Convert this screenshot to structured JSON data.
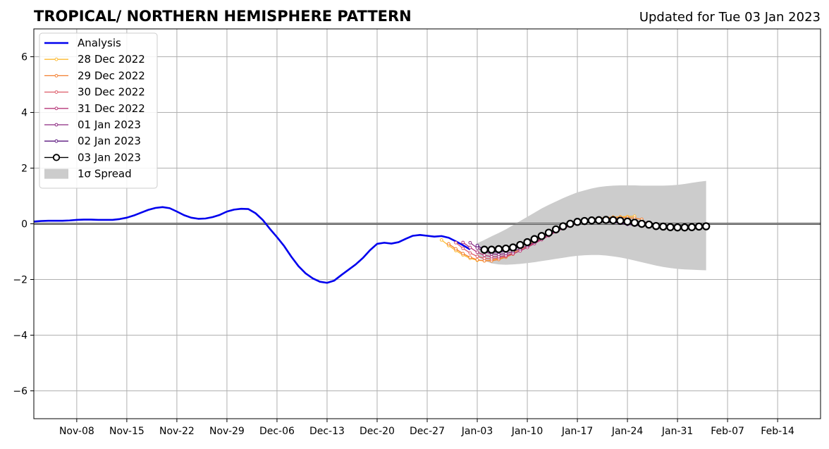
{
  "chart_data": {
    "type": "line",
    "title": "TROPICAL/ NORTHERN HEMISPHERE PATTERN",
    "subtitle": "Updated for Tue 03 Jan 2023",
    "xlabel": "",
    "ylabel": "",
    "ylim": [
      -7,
      7
    ],
    "xlim": [
      "2022-11-02",
      "2023-02-20"
    ],
    "yticks": [
      -6,
      -4,
      -2,
      0,
      2,
      4,
      6
    ],
    "ytick_labels": [
      "−6",
      "−4",
      "−2",
      "0",
      "2",
      "4",
      "6"
    ],
    "xticks": [
      "2022-11-08",
      "2022-11-15",
      "2022-11-22",
      "2022-11-29",
      "2022-12-06",
      "2022-12-13",
      "2022-12-20",
      "2022-12-27",
      "2023-01-03",
      "2023-01-10",
      "2023-01-17",
      "2023-01-24",
      "2023-01-31",
      "2023-02-07",
      "2023-02-14"
    ],
    "xtick_labels": [
      "Nov-08",
      "Nov-15",
      "Nov-22",
      "Nov-29",
      "Dec-06",
      "Dec-13",
      "Dec-20",
      "Dec-27",
      "Jan-03",
      "Jan-10",
      "Jan-17",
      "Jan-24",
      "Jan-31",
      "Feb-07",
      "Feb-14"
    ],
    "grid": true,
    "zero_line": true,
    "legend_position": "top-left",
    "legend": {
      "analysis": "Analysis",
      "spread": "1σ Spread"
    },
    "analysis": {
      "name": "Analysis",
      "color": "#0000ee",
      "start": "2022-11-02",
      "values": [
        0.08,
        0.1,
        0.11,
        0.11,
        0.11,
        0.12,
        0.14,
        0.15,
        0.15,
        0.14,
        0.14,
        0.14,
        0.17,
        0.22,
        0.3,
        0.4,
        0.5,
        0.57,
        0.6,
        0.56,
        0.44,
        0.31,
        0.22,
        0.18,
        0.19,
        0.24,
        0.32,
        0.44,
        0.51,
        0.54,
        0.53,
        0.38,
        0.14,
        -0.18,
        -0.48,
        -0.8,
        -1.18,
        -1.52,
        -1.78,
        -1.96,
        -2.08,
        -2.12,
        -2.04,
        -1.84,
        -1.65,
        -1.46,
        -1.23,
        -0.95,
        -0.72,
        -0.68,
        -0.71,
        -0.66,
        -0.54,
        -0.43,
        -0.4,
        -0.43,
        -0.46,
        -0.44,
        -0.5,
        -0.63,
        -0.77,
        -0.92
      ]
    },
    "forecasts": [
      {
        "name": "28 Dec 2022",
        "color": "#fcb930",
        "start": "2022-12-29",
        "values": [
          -0.58,
          -0.78,
          -0.96,
          -1.12,
          -1.24,
          -1.31,
          -1.33,
          -1.31,
          -1.26,
          -1.16,
          -1.04,
          -0.91,
          -0.78,
          -0.63,
          -0.48,
          -0.33,
          -0.2,
          -0.09,
          0.0,
          0.07,
          0.13,
          0.17,
          0.2,
          0.22,
          0.24,
          0.25,
          0.26,
          0.27
        ]
      },
      {
        "name": "29 Dec 2022",
        "color": "#f27e2f",
        "start": "2022-12-30",
        "values": [
          -0.72,
          -0.9,
          -1.07,
          -1.2,
          -1.29,
          -1.33,
          -1.33,
          -1.28,
          -1.2,
          -1.09,
          -0.96,
          -0.82,
          -0.67,
          -0.52,
          -0.37,
          -0.23,
          -0.11,
          -0.02,
          0.06,
          0.12,
          0.17,
          0.2,
          0.22,
          0.23,
          0.23,
          0.22,
          0.2,
          0.16
        ]
      },
      {
        "name": "30 Dec 2022",
        "color": "#dd5a67",
        "start": "2022-12-31",
        "values": [
          -0.68,
          -0.88,
          -1.05,
          -1.17,
          -1.24,
          -1.26,
          -1.23,
          -1.17,
          -1.08,
          -0.97,
          -0.84,
          -0.69,
          -0.54,
          -0.39,
          -0.25,
          -0.12,
          -0.02,
          0.06,
          0.11,
          0.14,
          0.16,
          0.16,
          0.15,
          0.13,
          0.11,
          0.09,
          0.07,
          0.05
        ]
      },
      {
        "name": "31 Dec 2022",
        "color": "#b73779",
        "start": "2023-01-01",
        "values": [
          -0.67,
          -0.85,
          -1.02,
          -1.13,
          -1.18,
          -1.18,
          -1.14,
          -1.07,
          -0.97,
          -0.85,
          -0.71,
          -0.57,
          -0.43,
          -0.29,
          -0.17,
          -0.07,
          0.01,
          0.06,
          0.1,
          0.11,
          0.11,
          0.1,
          0.08,
          0.05,
          0.03,
          0.01,
          0.0,
          -0.01
        ]
      },
      {
        "name": "01 Jan 2023",
        "color": "#8c2981",
        "start": "2023-01-02",
        "values": [
          -0.68,
          -0.87,
          -1.0,
          -1.08,
          -1.1,
          -1.07,
          -1.0,
          -0.9,
          -0.79,
          -0.66,
          -0.52,
          -0.38,
          -0.25,
          -0.14,
          -0.04,
          0.03,
          0.07,
          0.09,
          0.09,
          0.07,
          0.05,
          0.02,
          -0.01,
          -0.03,
          -0.05,
          -0.06,
          -0.07,
          -0.07
        ]
      },
      {
        "name": "02 Jan 2023",
        "color": "#5a167e",
        "start": "2023-01-03",
        "values": [
          -0.78,
          -0.94,
          -1.01,
          -1.02,
          -0.98,
          -0.91,
          -0.81,
          -0.69,
          -0.56,
          -0.43,
          -0.3,
          -0.18,
          -0.07,
          0.01,
          0.07,
          0.1,
          0.11,
          0.1,
          0.08,
          0.05,
          0.02,
          -0.02,
          -0.05,
          -0.07,
          -0.08,
          -0.09,
          -0.09,
          -0.08
        ]
      },
      {
        "name": "03 Jan 2023",
        "color": "#000000",
        "marker": "open-circle",
        "start": "2023-01-04",
        "values": [
          -0.93,
          -0.93,
          -0.91,
          -0.89,
          -0.85,
          -0.76,
          -0.66,
          -0.55,
          -0.44,
          -0.32,
          -0.2,
          -0.09,
          0.0,
          0.07,
          0.1,
          0.12,
          0.13,
          0.14,
          0.13,
          0.11,
          0.08,
          0.04,
          0.0,
          -0.03,
          -0.08,
          -0.1,
          -0.12,
          -0.13,
          -0.13,
          -0.12,
          -0.1,
          -0.09
        ]
      }
    ],
    "spread": {
      "name": "1σ Spread",
      "color": "#cccccc",
      "start": "2023-01-03",
      "upper": [
        -0.7,
        -0.58,
        -0.45,
        -0.33,
        -0.2,
        -0.05,
        0.1,
        0.25,
        0.4,
        0.55,
        0.68,
        0.8,
        0.92,
        1.03,
        1.13,
        1.2,
        1.27,
        1.32,
        1.35,
        1.37,
        1.38,
        1.38,
        1.38,
        1.37,
        1.37,
        1.37,
        1.37,
        1.38,
        1.4,
        1.43,
        1.47,
        1.51,
        1.54
      ],
      "lower": [
        -1.18,
        -1.33,
        -1.42,
        -1.46,
        -1.47,
        -1.46,
        -1.44,
        -1.41,
        -1.38,
        -1.34,
        -1.3,
        -1.26,
        -1.22,
        -1.18,
        -1.15,
        -1.13,
        -1.12,
        -1.12,
        -1.14,
        -1.17,
        -1.21,
        -1.26,
        -1.32,
        -1.38,
        -1.44,
        -1.5,
        -1.55,
        -1.59,
        -1.62,
        -1.64,
        -1.65,
        -1.66,
        -1.67
      ]
    }
  }
}
